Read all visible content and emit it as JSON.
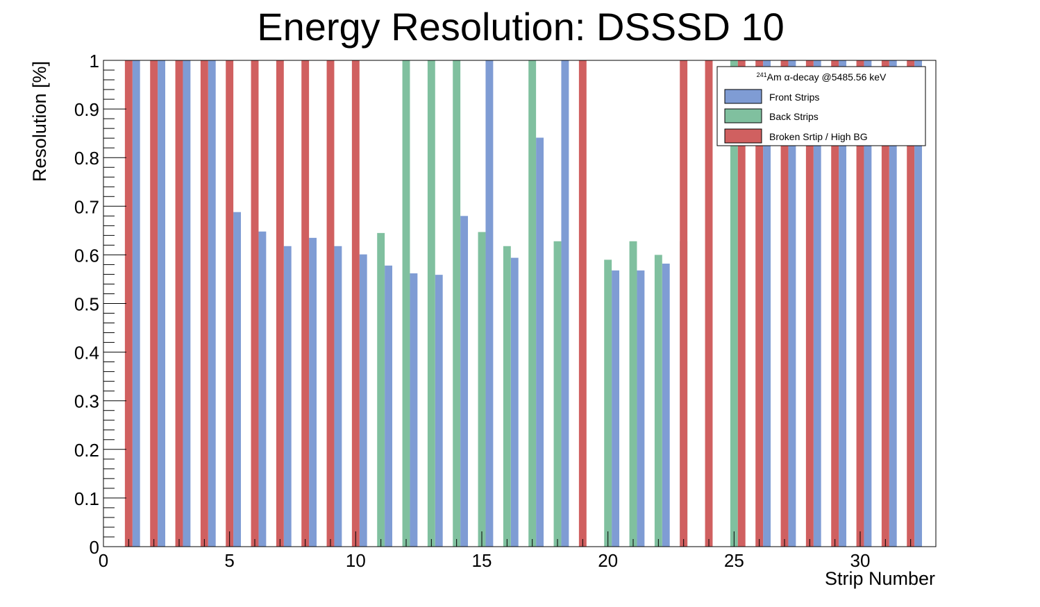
{
  "chart_data": {
    "type": "bar",
    "title": "Energy Resolution: DSSSD 10",
    "xlabel": "Strip Number",
    "ylabel": "Resolution [%]",
    "xlim": [
      0,
      33
    ],
    "ylim": [
      0,
      1
    ],
    "x_ticks": [
      0,
      5,
      10,
      15,
      20,
      25,
      30
    ],
    "y_ticks": [
      0,
      0.1,
      0.2,
      0.3,
      0.4,
      0.5,
      0.6,
      0.7,
      0.8,
      0.9,
      1
    ],
    "x_tick_labels": [
      "0",
      "5",
      "10",
      "15",
      "20",
      "25",
      "30"
    ],
    "y_tick_labels": [
      "0",
      "0.1",
      "0.2",
      "0.3",
      "0.4",
      "0.5",
      "0.6",
      "0.7",
      "0.8",
      "0.9",
      "1"
    ],
    "legend": {
      "title_sup": "241",
      "title": "Am α-decay @5485.56 keV",
      "position": "top-right"
    },
    "series": [
      {
        "name": "Front Strips",
        "color": "#7f9cd4",
        "offset": 0.3,
        "points": [
          {
            "x": 1,
            "y": 1
          },
          {
            "x": 2,
            "y": 1
          },
          {
            "x": 3,
            "y": 1
          },
          {
            "x": 4,
            "y": 1
          },
          {
            "x": 5,
            "y": 0.688
          },
          {
            "x": 6,
            "y": 0.648
          },
          {
            "x": 7,
            "y": 0.618
          },
          {
            "x": 8,
            "y": 0.635
          },
          {
            "x": 9,
            "y": 0.618
          },
          {
            "x": 10,
            "y": 0.601
          },
          {
            "x": 11,
            "y": 0.578
          },
          {
            "x": 12,
            "y": 0.562
          },
          {
            "x": 13,
            "y": 0.559
          },
          {
            "x": 14,
            "y": 0.68
          },
          {
            "x": 15,
            "y": 1
          },
          {
            "x": 16,
            "y": 0.594
          },
          {
            "x": 17,
            "y": 0.841
          },
          {
            "x": 18,
            "y": 1
          },
          {
            "x": 20,
            "y": 0.568
          },
          {
            "x": 21,
            "y": 0.568
          },
          {
            "x": 22,
            "y": 0.582
          },
          {
            "x": 26,
            "y": 1
          },
          {
            "x": 27,
            "y": 1
          },
          {
            "x": 28,
            "y": 1
          },
          {
            "x": 29,
            "y": 1
          },
          {
            "x": 30,
            "y": 1
          },
          {
            "x": 31,
            "y": 1
          },
          {
            "x": 32,
            "y": 1
          }
        ]
      },
      {
        "name": "Back Strips",
        "color": "#80c09f",
        "offset": 0.0,
        "points": [
          {
            "x": 11,
            "y": 0.645
          },
          {
            "x": 12,
            "y": 1
          },
          {
            "x": 13,
            "y": 1
          },
          {
            "x": 14,
            "y": 1
          },
          {
            "x": 15,
            "y": 0.647
          },
          {
            "x": 16,
            "y": 0.618
          },
          {
            "x": 17,
            "y": 1
          },
          {
            "x": 18,
            "y": 0.628
          },
          {
            "x": 20,
            "y": 0.59
          },
          {
            "x": 21,
            "y": 0.628
          },
          {
            "x": 22,
            "y": 0.6
          },
          {
            "x": 23,
            "y": 0.628
          },
          {
            "x": 25,
            "y": 1
          }
        ]
      },
      {
        "name": "Broken Srtip / High BG",
        "color": "#d06060",
        "offset": 0.0,
        "points": [
          {
            "x": 1,
            "y": 1
          },
          {
            "x": 2,
            "y": 1
          },
          {
            "x": 3,
            "y": 1
          },
          {
            "x": 4,
            "y": 1
          },
          {
            "x": 5,
            "y": 1
          },
          {
            "x": 6,
            "y": 1
          },
          {
            "x": 7,
            "y": 1
          },
          {
            "x": 8,
            "y": 1
          },
          {
            "x": 9,
            "y": 1
          },
          {
            "x": 10,
            "y": 1
          },
          {
            "x": 19,
            "y": 1
          },
          {
            "x": 23,
            "y": 1
          },
          {
            "x": 24,
            "y": 1
          },
          {
            "x": 25.3,
            "y": 1
          },
          {
            "x": 26,
            "y": 1
          },
          {
            "x": 27,
            "y": 1
          },
          {
            "x": 28,
            "y": 1
          },
          {
            "x": 29,
            "y": 1
          },
          {
            "x": 30,
            "y": 1
          },
          {
            "x": 31,
            "y": 1
          },
          {
            "x": 32,
            "y": 1
          }
        ]
      }
    ]
  }
}
